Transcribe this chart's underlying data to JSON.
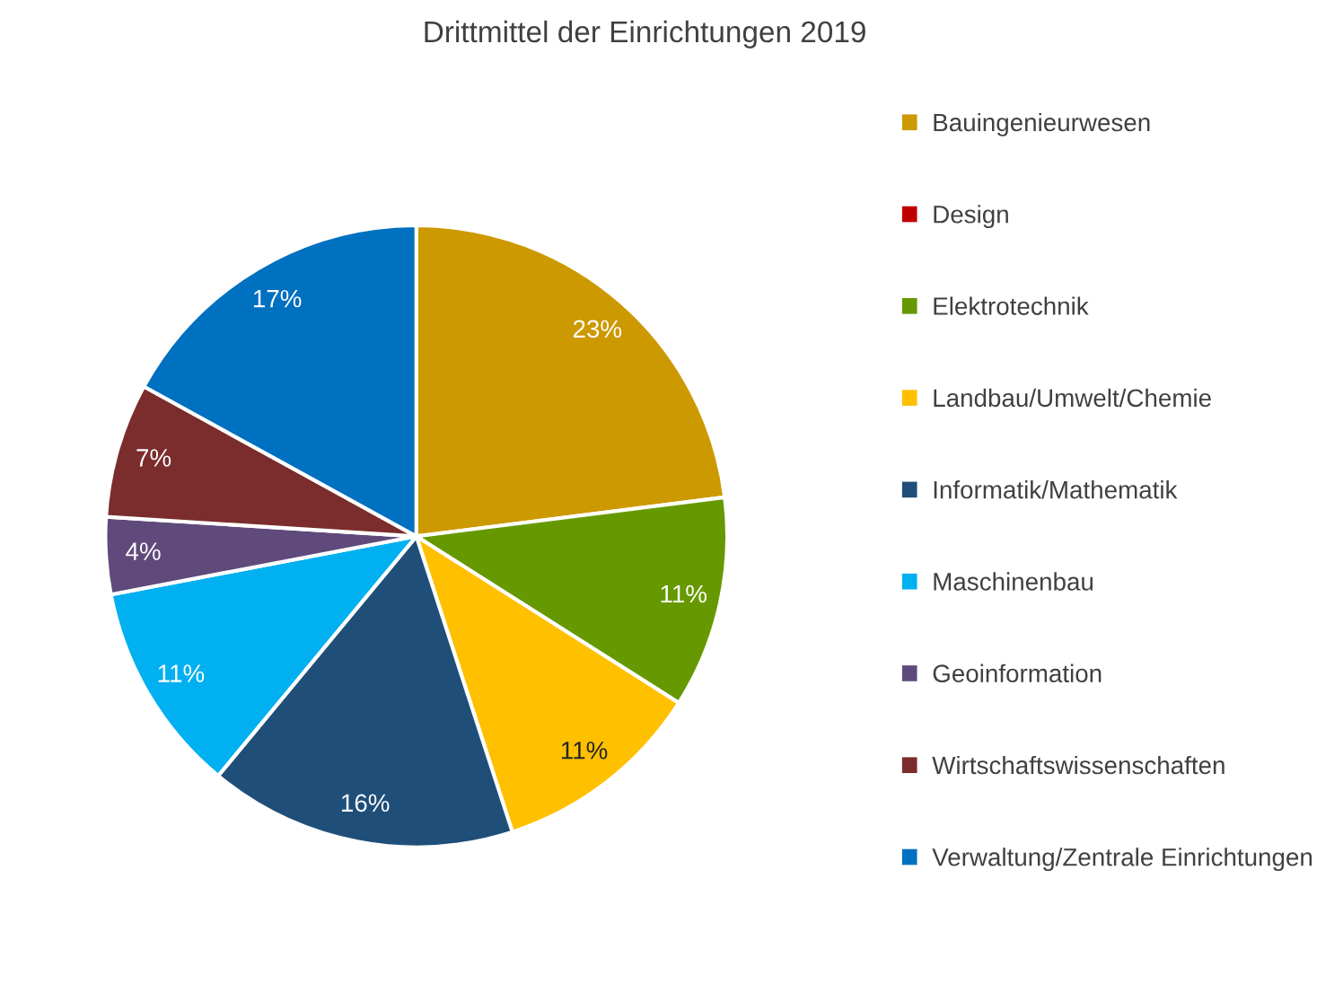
{
  "chart_data": {
    "type": "pie",
    "title": "Drittmittel der Einrichtungen 2019",
    "categories": [
      "Bauingenieurwesen",
      "Design",
      "Elektrotechnik",
      "Landbau/Umwelt/Chemie",
      "Informatik/Mathematik",
      "Maschinenbau",
      "Geoinformation",
      "Wirtschaftswissenschaften",
      "Verwaltung/Zentrale Einrichtungen"
    ],
    "values": [
      23,
      0,
      11,
      11,
      16,
      11,
      4,
      7,
      17
    ],
    "colors": [
      "#cc9900",
      "#c00000",
      "#669900",
      "#ffc000",
      "#1f4e79",
      "#00b0f0",
      "#604a7b",
      "#7b2c2c",
      "#0070c0"
    ],
    "value_labels": [
      "23%",
      null,
      "11%",
      "11%",
      "16%",
      "11%",
      "4%",
      "7%",
      "17%"
    ],
    "legend": "right"
  }
}
